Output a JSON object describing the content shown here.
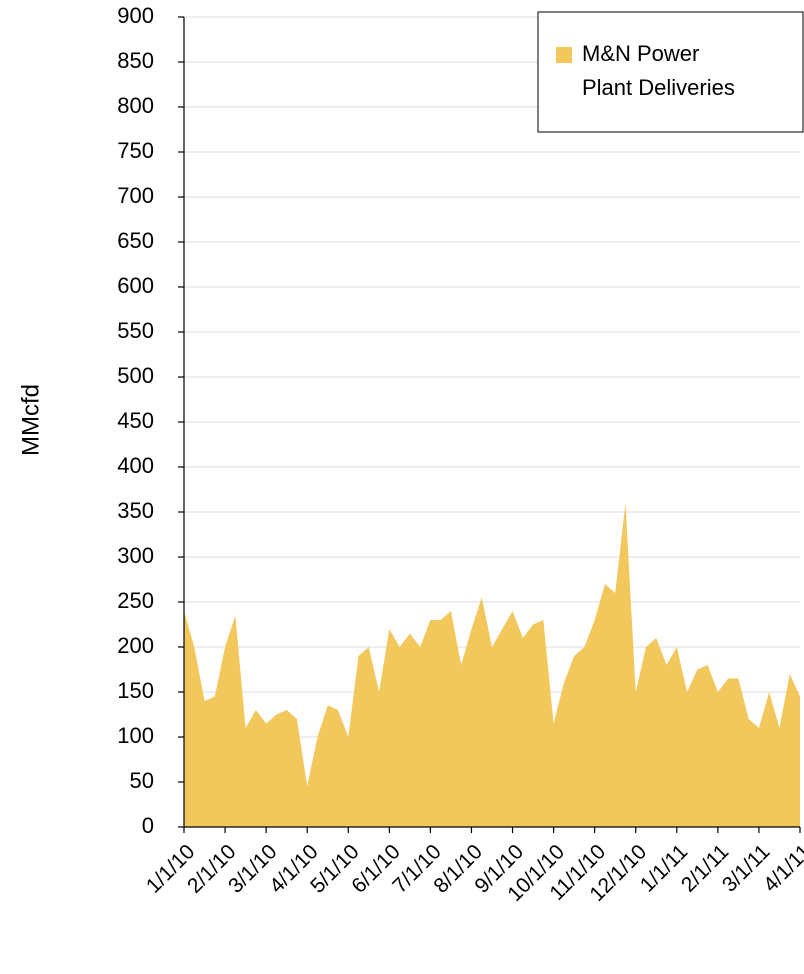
{
  "chart_data": {
    "type": "area",
    "y_label": "MMcfd",
    "ylim": [
      0,
      900
    ],
    "yticks": [
      0,
      50,
      100,
      150,
      200,
      250,
      300,
      350,
      400,
      450,
      500,
      550,
      600,
      650,
      700,
      750,
      800,
      850,
      900
    ],
    "grid": true,
    "legend": "top-right",
    "categories": [
      "1/1/10",
      null,
      null,
      null,
      "2/1/10",
      null,
      null,
      null,
      "3/1/10",
      null,
      null,
      null,
      "4/1/10",
      null,
      null,
      null,
      "5/1/10",
      null,
      null,
      null,
      "6/1/10",
      null,
      null,
      null,
      "7/1/10",
      null,
      null,
      null,
      "8/1/10",
      null,
      null,
      null,
      "9/1/10",
      null,
      null,
      null,
      "10/1/10",
      null,
      null,
      null,
      "11/1/10",
      null,
      null,
      null,
      "12/1/10",
      null,
      null,
      null,
      "1/1/11",
      null,
      null,
      null,
      "2/1/11",
      null,
      null,
      null,
      "3/1/11",
      null,
      null,
      null,
      "4/1/11"
    ],
    "series": [
      {
        "name": "M&N Power Plant Deliveries",
        "color": "#f2c75c",
        "values": [
          240,
          200,
          140,
          145,
          200,
          235,
          110,
          130,
          115,
          125,
          130,
          120,
          45,
          100,
          135,
          130,
          100,
          190,
          200,
          150,
          220,
          200,
          215,
          200,
          230,
          230,
          240,
          180,
          220,
          255,
          200,
          220,
          240,
          210,
          225,
          230,
          115,
          160,
          190,
          200,
          230,
          270,
          260,
          360,
          150,
          200,
          210,
          180,
          200,
          150,
          175,
          180,
          150,
          165,
          165,
          120,
          110,
          150,
          110,
          170,
          145
        ]
      }
    ]
  }
}
